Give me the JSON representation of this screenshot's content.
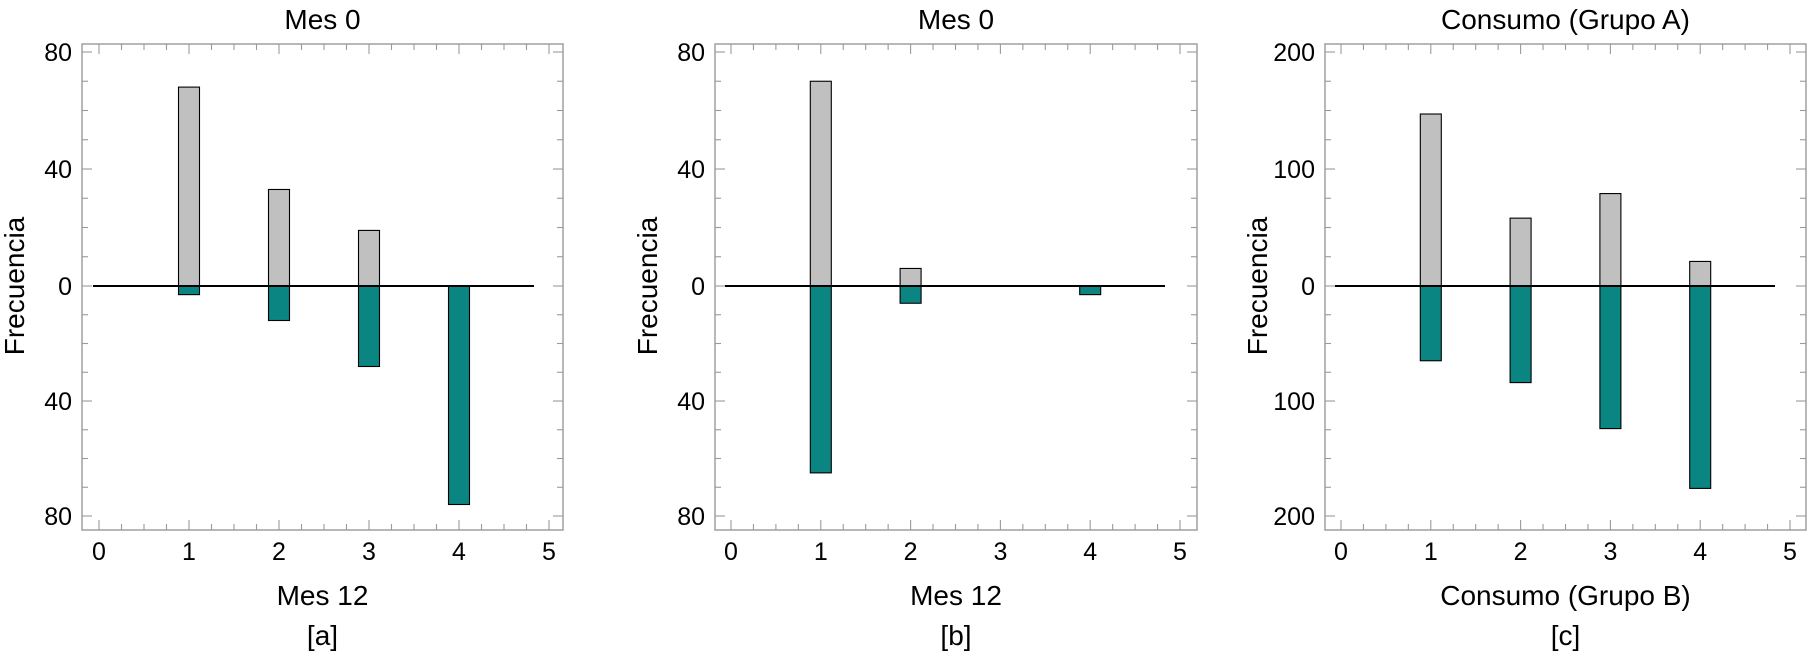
{
  "chart_data": [
    {
      "type": "bar",
      "panel": "[a]",
      "title": "Mes 0",
      "xlabel": "Mes 12",
      "ylabel": "Frecuencia",
      "x_ticks": [
        0,
        1,
        2,
        3,
        4,
        5
      ],
      "y_tick_labels": [
        "80",
        "40",
        "0",
        "40",
        "80"
      ],
      "xlim": [
        0,
        5
      ],
      "ylim_top": 80,
      "ylim_bottom": 80,
      "y_step": 40,
      "y_minor": 10,
      "x_minor": 0.25,
      "series": [
        {
          "position": "top",
          "color": "#c0c0c0",
          "x": [
            1,
            2,
            3
          ],
          "values": [
            68,
            33,
            19
          ]
        },
        {
          "position": "bottom",
          "color": "#0a8582",
          "x": [
            1,
            2,
            3,
            4
          ],
          "values": [
            3,
            12,
            28,
            76
          ]
        }
      ]
    },
    {
      "type": "bar",
      "panel": "[b]",
      "title": "Mes 0",
      "xlabel": "Mes 12",
      "ylabel": "Frecuencia",
      "x_ticks": [
        0,
        1,
        2,
        3,
        4,
        5
      ],
      "y_tick_labels": [
        "80",
        "40",
        "0",
        "40",
        "80"
      ],
      "xlim": [
        0,
        5
      ],
      "ylim_top": 80,
      "ylim_bottom": 80,
      "y_step": 40,
      "y_minor": 10,
      "x_minor": 0.25,
      "series": [
        {
          "position": "top",
          "color": "#c0c0c0",
          "x": [
            1,
            2
          ],
          "values": [
            70,
            6
          ]
        },
        {
          "position": "bottom",
          "color": "#0a8582",
          "x": [
            1,
            2,
            4
          ],
          "values": [
            65,
            6,
            3
          ]
        }
      ]
    },
    {
      "type": "bar",
      "panel": "[c]",
      "title": "Consumo (Grupo A)",
      "xlabel": "Consumo (Grupo B)",
      "ylabel": "Frecuencia",
      "x_ticks": [
        0,
        1,
        2,
        3,
        4,
        5
      ],
      "y_tick_labels": [
        "200",
        "100",
        "0",
        "100",
        "200"
      ],
      "xlim": [
        0,
        5
      ],
      "ylim_top": 200,
      "ylim_bottom": 200,
      "y_step": 100,
      "y_minor": 25,
      "x_minor": 0.25,
      "series": [
        {
          "position": "top",
          "color": "#c0c0c0",
          "x": [
            1,
            2,
            3,
            4
          ],
          "values": [
            147,
            58,
            79,
            21
          ]
        },
        {
          "position": "bottom",
          "color": "#0a8582",
          "x": [
            1,
            2,
            3,
            4
          ],
          "values": [
            65,
            84,
            124,
            176
          ]
        }
      ]
    }
  ]
}
